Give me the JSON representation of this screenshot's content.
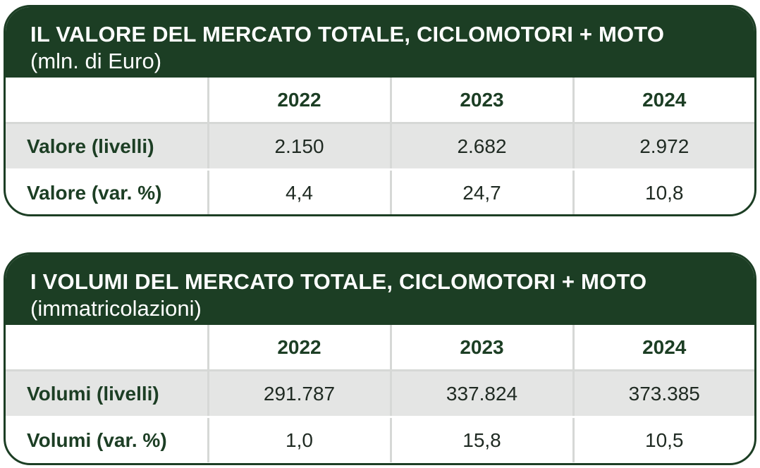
{
  "tables": [
    {
      "title": "IL VALORE DEL MERCATO TOTALE, CICLOMOTORI + MOTO",
      "subtitle": "(mln. di Euro)",
      "columns": [
        "",
        "2022",
        "2023",
        "2024"
      ],
      "rows": [
        {
          "label": "Valore (livelli)",
          "values": [
            "2.150",
            "2.682",
            "2.972"
          ]
        },
        {
          "label": "Valore (var. %)",
          "values": [
            "4,4",
            "24,7",
            "10,8"
          ]
        }
      ]
    },
    {
      "title": "I VOLUMI DEL MERCATO TOTALE, CICLOMOTORI + MOTO",
      "subtitle": "(immatricolazioni)",
      "columns": [
        "",
        "2022",
        "2023",
        "2024"
      ],
      "rows": [
        {
          "label": "Volumi (livelli)",
          "values": [
            "291.787",
            "337.824",
            "373.385"
          ]
        },
        {
          "label": "Volumi (var. %)",
          "values": [
            "1,0",
            "15,8",
            "10,5"
          ]
        }
      ]
    }
  ],
  "colors": {
    "header_bg": "#1c3e24",
    "header_text": "#ffffff",
    "row_shade": "#e4e5e4",
    "divider": "#d6d8d6"
  }
}
